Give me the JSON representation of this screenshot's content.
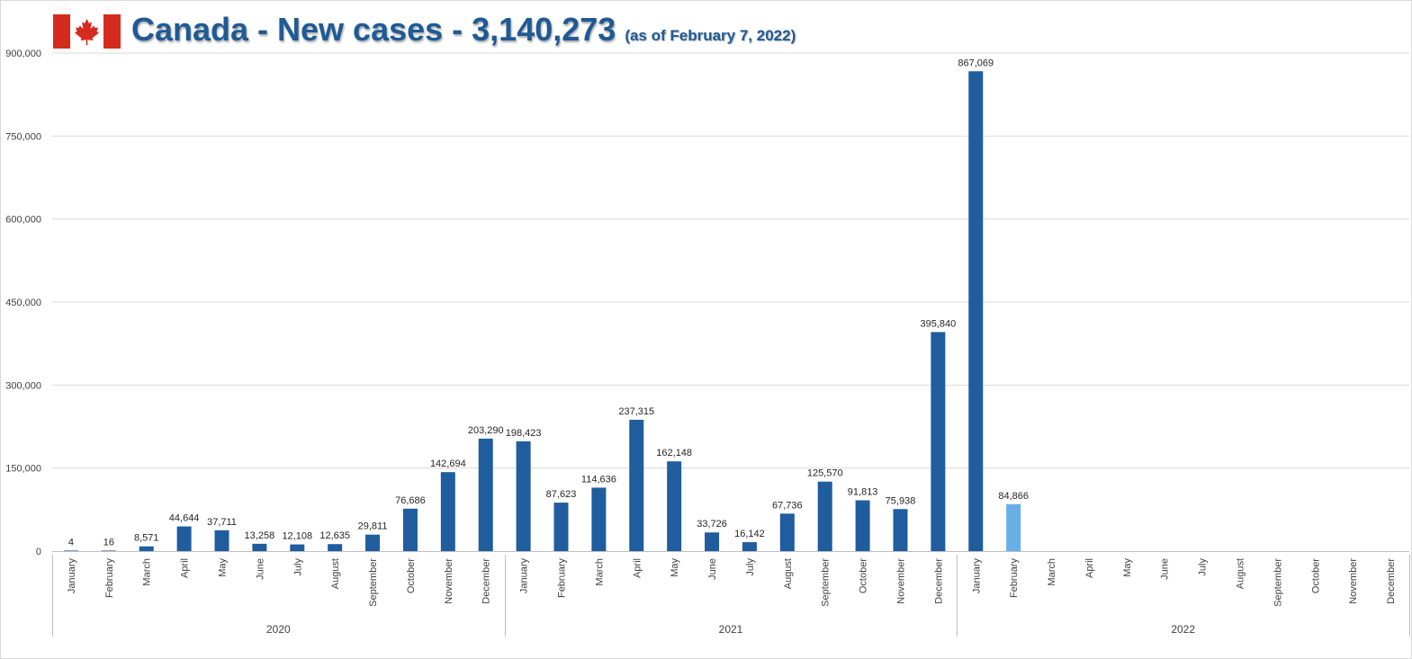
{
  "title": "Canada - New cases - 3,140,273",
  "subtitle": "(as of February 7, 2022)",
  "icons": {
    "flag": "canada-flag-icon"
  },
  "colors": {
    "bar": "#1f5d9e",
    "bar_highlight": "#6aaee8",
    "title": "#1f5a95",
    "flag_red": "#d52b1e"
  },
  "chart_data": {
    "type": "bar",
    "title": "Canada - New cases - 3,140,273",
    "subtitle": "(as of February 7, 2022)",
    "xlabel": "",
    "ylabel": "",
    "ylim": [
      0,
      900000
    ],
    "yticks": [
      0,
      150000,
      300000,
      450000,
      600000,
      750000,
      900000
    ],
    "ytick_labels": [
      "0",
      "150,000",
      "300,000",
      "450,000",
      "600,000",
      "750,000",
      "900,000"
    ],
    "grid": true,
    "legend": "none",
    "years": [
      {
        "label": "2020",
        "months": 12
      },
      {
        "label": "2021",
        "months": 12
      },
      {
        "label": "2022",
        "months": 12
      }
    ],
    "categories": [
      "January",
      "February",
      "March",
      "April",
      "May",
      "June",
      "July",
      "August",
      "September",
      "October",
      "November",
      "December",
      "January",
      "February",
      "March",
      "April",
      "May",
      "June",
      "July",
      "August",
      "September",
      "October",
      "November",
      "December",
      "January",
      "February",
      "March",
      "April",
      "May",
      "June",
      "July",
      "August",
      "September",
      "October",
      "November",
      "December"
    ],
    "values": [
      4,
      16,
      8571,
      44644,
      37711,
      13258,
      12108,
      12635,
      29811,
      76686,
      142694,
      203290,
      198423,
      87623,
      114636,
      237315,
      162148,
      33726,
      16142,
      67736,
      125570,
      91813,
      75938,
      395840,
      867069,
      84866,
      null,
      null,
      null,
      null,
      null,
      null,
      null,
      null,
      null,
      null
    ],
    "value_labels": [
      "4",
      "16",
      "8,571",
      "44,644",
      "37,711",
      "13,258",
      "12,108",
      "12,635",
      "29,811",
      "76,686",
      "142,694",
      "203,290",
      "198,423",
      "87,623",
      "114,636",
      "237,315",
      "162,148",
      "33,726",
      "16,142",
      "67,736",
      "125,570",
      "91,813",
      "75,938",
      "395,840",
      "867,069",
      "84,866",
      "",
      "",
      "",
      "",
      "",
      "",
      "",
      "",
      "",
      ""
    ],
    "highlight_index": 25
  }
}
